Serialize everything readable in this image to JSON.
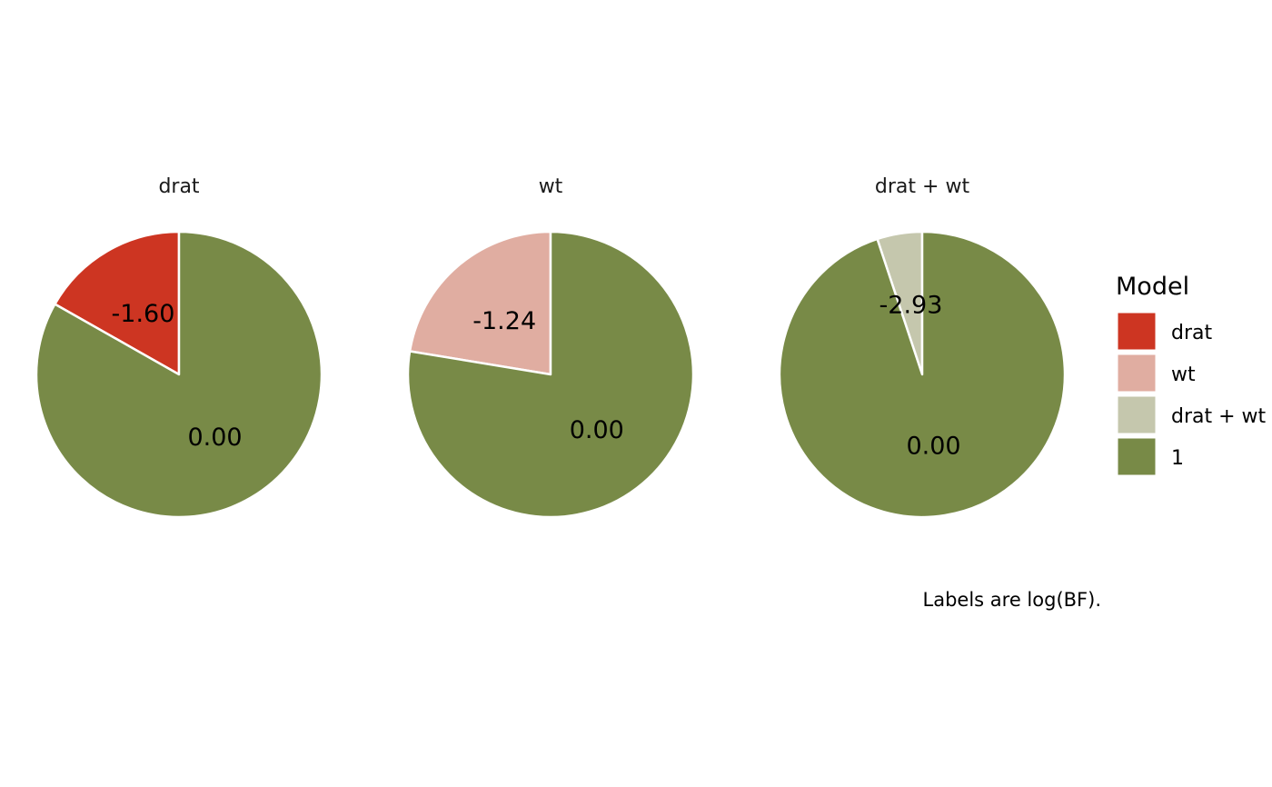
{
  "chart_data": {
    "type": "pie",
    "facets": [
      {
        "title": "drat",
        "slices": [
          {
            "model": "drat",
            "value": 0.168,
            "label": "-1.60"
          },
          {
            "model": "1",
            "value": 0.832,
            "label": "0.00"
          }
        ]
      },
      {
        "title": "wt",
        "slices": [
          {
            "model": "wt",
            "value": 0.224,
            "label": "-1.24"
          },
          {
            "model": "1",
            "value": 0.776,
            "label": "0.00"
          }
        ]
      },
      {
        "title": "drat + wt",
        "slices": [
          {
            "model": "drat + wt",
            "value": 0.051,
            "label": "-2.93"
          },
          {
            "model": "1",
            "value": 0.949,
            "label": "0.00"
          }
        ]
      }
    ],
    "legend": {
      "title": "Model",
      "position": "right",
      "items": [
        {
          "name": "drat",
          "color": "#cd3522"
        },
        {
          "name": "wt",
          "color": "#e0ada1"
        },
        {
          "name": "drat + wt",
          "color": "#c5c7ad"
        },
        {
          "name": "1",
          "color": "#788a47"
        }
      ]
    },
    "caption": "Labels are log(BF)."
  }
}
